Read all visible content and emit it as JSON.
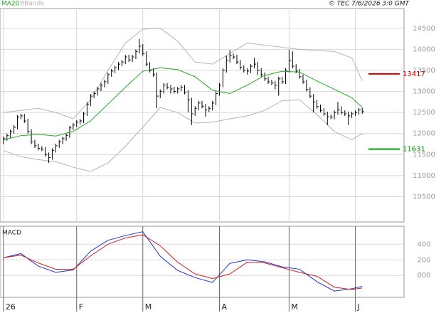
{
  "chart_data": [
    {
      "type": "ohlc",
      "attribution": "© TEC 7/6/2026 3:0 GMT",
      "xlim": [
        -1,
        115
      ],
      "xticks": [
        {
          "value": 0,
          "label": "26"
        },
        {
          "value": 21,
          "label": "F"
        },
        {
          "value": 40,
          "label": "M"
        },
        {
          "value": 62,
          "label": "A"
        },
        {
          "value": 82,
          "label": "M"
        },
        {
          "value": 101,
          "label": "J"
        }
      ],
      "ylim": [
        9900,
        14970
      ],
      "yticks": [
        10500,
        11000,
        11500,
        12000,
        12500,
        13000,
        13500,
        14000,
        14500
      ],
      "grid": true,
      "bars": {
        "color": "#000000",
        "high": [
          11930,
          12000,
          12100,
          12200,
          12440,
          12470,
          12470,
          12350,
          12100,
          11850,
          11760,
          11700,
          11680,
          11550,
          11650,
          11760,
          11850,
          11930,
          12000,
          12185,
          12250,
          12320,
          12350,
          12520,
          12750,
          12940,
          13000,
          13110,
          13200,
          13280,
          13450,
          13535,
          13610,
          13700,
          13750,
          13870,
          13870,
          13870,
          14000,
          14250,
          14125,
          13950,
          13700,
          13550,
          13450,
          13050,
          13200,
          13200,
          13150,
          13110,
          13110,
          13150,
          13150,
          13030,
          12850,
          12650,
          12775,
          12775,
          12700,
          12650,
          12775,
          13000,
          13200,
          13550,
          13850,
          13990,
          13900,
          13870,
          13750,
          13620,
          13550,
          13650,
          13800,
          13700,
          13550,
          13450,
          13350,
          13280,
          13250,
          13350,
          13350,
          13550,
          13990,
          13950,
          13650,
          13535,
          13400,
          13280,
          13100,
          12940,
          12800,
          12690,
          12600,
          12520,
          12450,
          12550,
          12750,
          12650,
          12550,
          12520,
          12520,
          12550,
          12610,
          12610
        ],
        "low": [
          11750,
          11830,
          11900,
          12000,
          12100,
          12340,
          12250,
          12000,
          11750,
          11660,
          11600,
          11580,
          11450,
          11300,
          11380,
          11550,
          11660,
          11750,
          11830,
          11900,
          12085,
          12150,
          12220,
          12250,
          12420,
          12650,
          12840,
          12900,
          13010,
          13100,
          13180,
          13350,
          13435,
          13510,
          13600,
          13650,
          13700,
          13700,
          13770,
          13900,
          13850,
          13600,
          13450,
          13350,
          12600,
          12840,
          12950,
          13050,
          12950,
          12950,
          12950,
          13010,
          12930,
          12500,
          12200,
          12420,
          12550,
          12600,
          12400,
          12510,
          12550,
          12675,
          12900,
          13100,
          13450,
          13685,
          13770,
          13650,
          13520,
          13450,
          13400,
          13435,
          13550,
          13400,
          13350,
          13250,
          13180,
          13150,
          13050,
          12900,
          13180,
          13180,
          13450,
          13550,
          13435,
          13300,
          13180,
          13000,
          12840,
          12500,
          12590,
          12500,
          12420,
          12200,
          12340,
          12340,
          12450,
          12450,
          12420,
          12200,
          12370,
          12420,
          12450,
          12470
        ],
        "close": [
          11880,
          11950,
          12050,
          12150,
          12390,
          12420,
          12300,
          12050,
          11800,
          11710,
          11650,
          11630,
          11500,
          11430,
          11600,
          11710,
          11800,
          11880,
          11950,
          12135,
          12200,
          12270,
          12300,
          12470,
          12700,
          12890,
          12950,
          13060,
          13150,
          13230,
          13400,
          13485,
          13560,
          13650,
          13700,
          13820,
          13750,
          13820,
          13950,
          14075,
          13900,
          13650,
          13500,
          13400,
          12890,
          13000,
          13150,
          13100,
          13060,
          13000,
          13060,
          13100,
          12980,
          12800,
          12470,
          12600,
          12725,
          12650,
          12560,
          12600,
          12725,
          12950,
          13150,
          13500,
          13735,
          13850,
          13820,
          13700,
          13570,
          13500,
          13485,
          13600,
          13650,
          13500,
          13400,
          13300,
          13230,
          13200,
          13150,
          13300,
          13230,
          13500,
          13735,
          13600,
          13485,
          13350,
          13230,
          13050,
          12890,
          12750,
          12640,
          12550,
          12470,
          12400,
          12390,
          12500,
          12560,
          12500,
          12470,
          12420,
          12470,
          12500,
          12560,
          12520
        ]
      },
      "series": [
        {
          "name": "MA20",
          "color": "#22aa22",
          "x": [
            0,
            5,
            10,
            15,
            20,
            25,
            30,
            35,
            40,
            45,
            50,
            55,
            60,
            65,
            70,
            75,
            80,
            85,
            90,
            95,
            100,
            103
          ],
          "values": [
            11850,
            11950,
            11980,
            11940,
            12050,
            12300,
            12700,
            13100,
            13480,
            13560,
            13520,
            13350,
            13030,
            12950,
            13150,
            13380,
            13480,
            13460,
            13250,
            13050,
            12850,
            12620
          ]
        },
        {
          "name": "BBands",
          "color": "#b4b4b4",
          "x": [
            0,
            5,
            10,
            15,
            20,
            25,
            30,
            35,
            40,
            45,
            50,
            55,
            60,
            65,
            70,
            75,
            80,
            85,
            90,
            95,
            100,
            103
          ],
          "upper": [
            12500,
            12550,
            12600,
            12500,
            12350,
            12800,
            13500,
            14150,
            14480,
            14500,
            14200,
            13700,
            13650,
            13900,
            14150,
            14100,
            14050,
            14000,
            13970,
            13950,
            13800,
            13250
          ],
          "lower": [
            11600,
            11450,
            11380,
            11330,
            11200,
            11100,
            11300,
            11700,
            12150,
            12620,
            12500,
            12250,
            12270,
            12350,
            12420,
            12550,
            12780,
            12800,
            12450,
            12050,
            11850,
            12000
          ]
        }
      ],
      "levels": [
        {
          "value": 13417,
          "color": "#cc0000"
        },
        {
          "value": 11631,
          "color": "#009900"
        }
      ]
    },
    {
      "type": "line",
      "title": "MACD",
      "ylim": [
        -280,
        630
      ],
      "yticks": [
        400,
        200,
        {
          "value": 0,
          "label": "000"
        }
      ],
      "grid": true,
      "x": [
        0,
        5,
        10,
        15,
        20,
        25,
        30,
        35,
        40,
        45,
        50,
        55,
        60,
        65,
        70,
        75,
        80,
        85,
        90,
        95,
        100,
        103
      ],
      "series": [
        {
          "color": "#2233cc",
          "values": [
            227,
            280,
            120,
            40,
            70,
            310,
            450,
            510,
            560,
            245,
            64,
            -27,
            -90,
            155,
            200,
            175,
            110,
            80,
            -80,
            -200,
            -170,
            -140
          ]
        },
        {
          "color": "#cc2222",
          "values": [
            227,
            260,
            160,
            80,
            80,
            250,
            400,
            480,
            520,
            380,
            170,
            20,
            -40,
            20,
            170,
            160,
            100,
            40,
            -10,
            -150,
            -180,
            -160
          ]
        }
      ]
    }
  ]
}
